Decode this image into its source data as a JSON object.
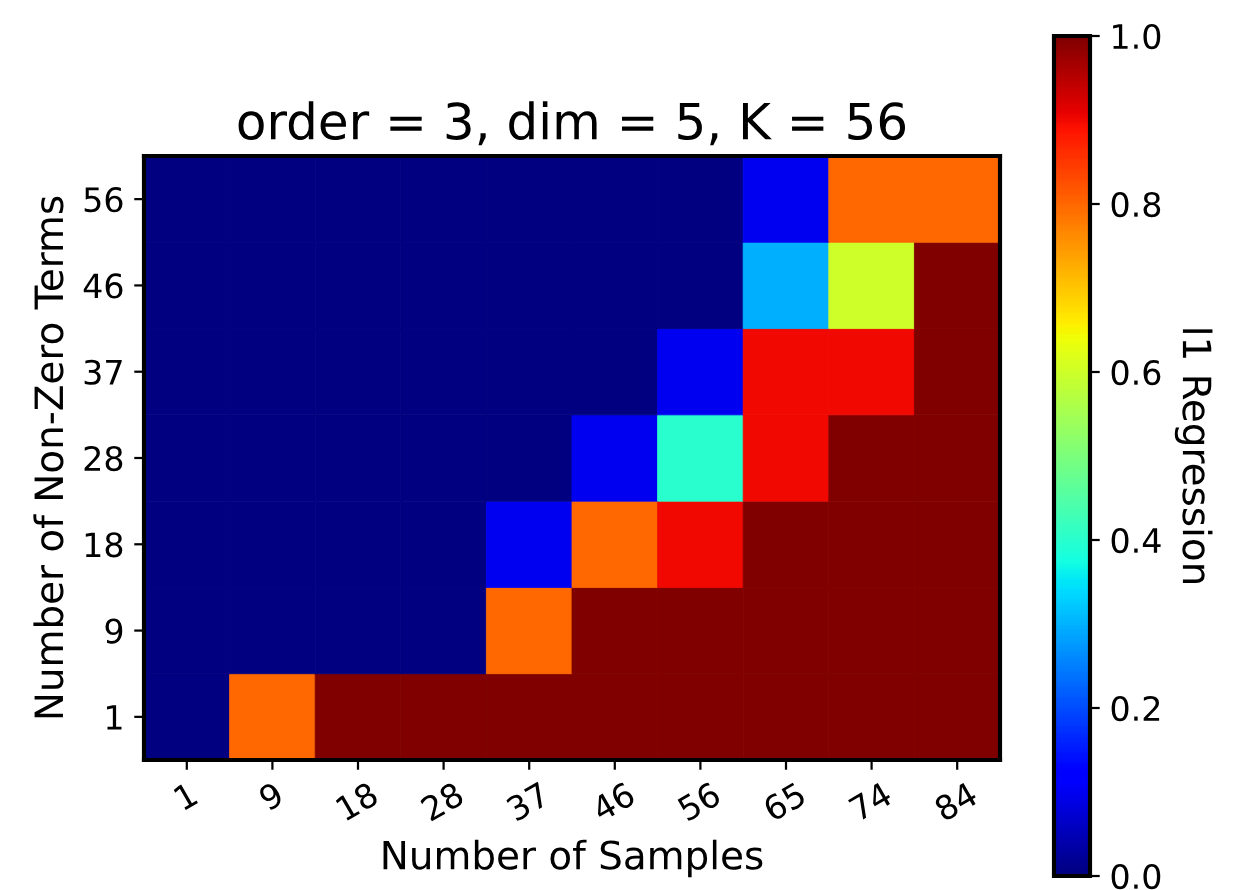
{
  "chart_data": {
    "type": "heatmap",
    "title": "order = 3, dim = 5, K = 56",
    "xlabel": "Number of Samples",
    "ylabel": "Number of Non-Zero Terms",
    "clabel": "l1 Regression",
    "categories": [
      "1",
      "9",
      "18",
      "28",
      "37",
      "46",
      "56",
      "65",
      "74",
      "84"
    ],
    "y_categories": [
      "56",
      "46",
      "37",
      "28",
      "18",
      "9",
      "1"
    ],
    "cells": [
      [
        0,
        0,
        0,
        0,
        0,
        0,
        0,
        0.1,
        0.8,
        0.8
      ],
      [
        0,
        0,
        0,
        0,
        0,
        0,
        0,
        0.3,
        0.6,
        1
      ],
      [
        0,
        0,
        0,
        0,
        0,
        0,
        0.1,
        0.9,
        0.9,
        1
      ],
      [
        0,
        0,
        0,
        0,
        0,
        0.1,
        0.4,
        0.9,
        1,
        1
      ],
      [
        0,
        0,
        0,
        0,
        0.1,
        0.8,
        0.9,
        1,
        1,
        1
      ],
      [
        0,
        0,
        0,
        0,
        0.8,
        1,
        1,
        1,
        1,
        1
      ],
      [
        0,
        0.8,
        1,
        1,
        1,
        1,
        1,
        1,
        1,
        1
      ]
    ],
    "clim": [
      0,
      1
    ],
    "cticks": [
      {
        "value": 0,
        "label": "0.0"
      },
      {
        "value": 0.2,
        "label": "0.2"
      },
      {
        "value": 0.4,
        "label": "0.4"
      },
      {
        "value": 0.6,
        "label": "0.6"
      },
      {
        "value": 0.8,
        "label": "0.8"
      },
      {
        "value": 1,
        "label": "1.0"
      }
    ]
  }
}
